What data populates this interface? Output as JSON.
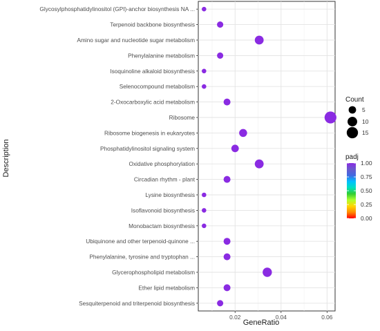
{
  "chart_data": {
    "type": "scatter",
    "xlabel": "GeneRatio",
    "ylabel": "Description",
    "xlim": [
      0.004,
      0.0635
    ],
    "x_ticks": [
      0.02,
      0.04,
      0.06
    ],
    "x_tick_labels": [
      "0.02",
      "0.04",
      "0.06"
    ],
    "grid": true,
    "legend_position": "right",
    "terms": [
      {
        "label": "Glycosylphosphatidylinositol (GPI)-anchor biosynthesis NA ...",
        "x": 0.0065,
        "count": 1,
        "padj": 1.0
      },
      {
        "label": "Terpenoid backbone biosynthesis",
        "x": 0.0135,
        "count": 3,
        "padj": 1.0
      },
      {
        "label": "Amino sugar and nucleotide sugar metabolism",
        "x": 0.0305,
        "count": 8,
        "padj": 1.0
      },
      {
        "label": "Phenylalanine metabolism",
        "x": 0.0135,
        "count": 3,
        "padj": 1.0
      },
      {
        "label": "Isoquinoline alkaloid biosynthesis",
        "x": 0.0065,
        "count": 1,
        "padj": 1.0
      },
      {
        "label": "Selenocompound metabolism",
        "x": 0.0065,
        "count": 1,
        "padj": 1.0
      },
      {
        "label": "2-Oxocarboxylic acid metabolism",
        "x": 0.0165,
        "count": 4,
        "padj": 1.0
      },
      {
        "label": "Ribosome",
        "x": 0.0615,
        "count": 17,
        "padj": 1.0
      },
      {
        "label": "Ribosome biogenesis in eukaryotes",
        "x": 0.0235,
        "count": 6,
        "padj": 1.0
      },
      {
        "label": "Phosphatidylinositol signaling system",
        "x": 0.02,
        "count": 5,
        "padj": 1.0
      },
      {
        "label": "Oxidative phosphorylation",
        "x": 0.0305,
        "count": 8,
        "padj": 1.0
      },
      {
        "label": "Circadian rhythm - plant",
        "x": 0.0165,
        "count": 4,
        "padj": 1.0
      },
      {
        "label": "Lysine biosynthesis",
        "x": 0.0065,
        "count": 1,
        "padj": 1.0
      },
      {
        "label": "Isoflavonoid biosynthesis",
        "x": 0.0065,
        "count": 1,
        "padj": 1.0
      },
      {
        "label": "Monobactam biosynthesis",
        "x": 0.0065,
        "count": 1,
        "padj": 1.0
      },
      {
        "label": "Ubiquinone and other terpenoid-quinone ...",
        "x": 0.0165,
        "count": 4,
        "padj": 1.0
      },
      {
        "label": "Phenylalanine, tyrosine and tryptophan ...",
        "x": 0.0165,
        "count": 4,
        "padj": 1.0
      },
      {
        "label": "Glycerophospholipid metabolism",
        "x": 0.034,
        "count": 9,
        "padj": 1.0
      },
      {
        "label": "Ether lipid metabolism",
        "x": 0.0165,
        "count": 4,
        "padj": 1.0
      },
      {
        "label": "Sesquiterpenoid and triterpenoid biosynthesis",
        "x": 0.0135,
        "count": 3,
        "padj": 1.0
      }
    ],
    "size_legend": {
      "title": "Count",
      "values": [
        5,
        10,
        15
      ],
      "labels": [
        "5",
        "10",
        "15"
      ]
    },
    "color_legend": {
      "title": "padj",
      "values": [
        1.0,
        0.75,
        0.5,
        0.25,
        0.0
      ],
      "labels": [
        "1.00",
        "0.75",
        "0.50",
        "0.25",
        "0.00"
      ],
      "gradient_colors": [
        "#8a2be2",
        "#6a5acd",
        "#4169e1",
        "#00bfff",
        "#00e0c0",
        "#32cd32",
        "#adff2f",
        "#ffd700",
        "#ff8c00",
        "#ff0000"
      ],
      "point_color": "#8a2be2"
    }
  }
}
